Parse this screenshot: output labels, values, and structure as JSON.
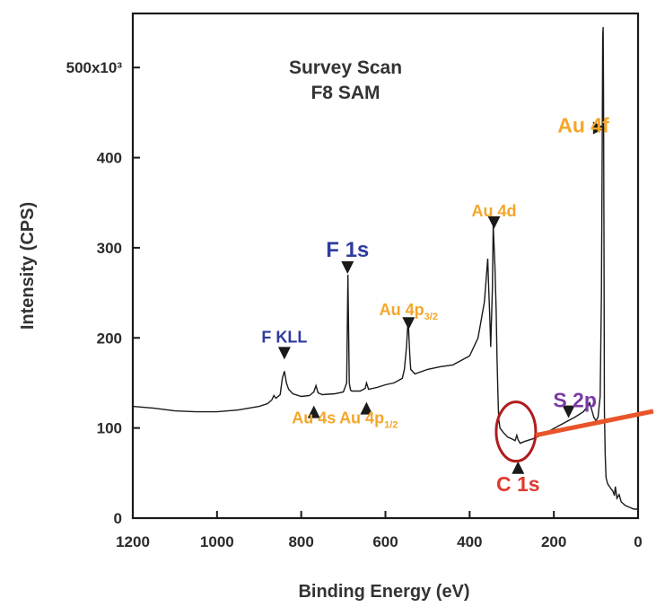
{
  "chart_data": {
    "type": "line",
    "title_lines": [
      "Survey Scan",
      "F8 SAM"
    ],
    "xlabel": "Binding Energy (eV)",
    "ylabel": "Intensity (CPS)",
    "xlim": [
      1200,
      0
    ],
    "ylim": [
      0,
      560000
    ],
    "x_ticks": [
      1200,
      1000,
      800,
      600,
      400,
      200,
      0
    ],
    "x_tick_labels": [
      "1200",
      "1000",
      "800",
      "600",
      "400",
      "200",
      "0"
    ],
    "y_ticks": [
      0,
      100000,
      200000,
      300000,
      400000,
      500000
    ],
    "y_tick_labels": [
      "0",
      "100",
      "200",
      "300",
      "400",
      "500x10³"
    ],
    "series": [
      {
        "x": [
          1200,
          1150,
          1100,
          1050,
          1000,
          950,
          900,
          880,
          870,
          865,
          860,
          850,
          845,
          840,
          835,
          830,
          820,
          800,
          780,
          770,
          765,
          760,
          750,
          720,
          700,
          692,
          689,
          686,
          683,
          680,
          660,
          648,
          645,
          640,
          620,
          600,
          580,
          560,
          555,
          550,
          547,
          545,
          542,
          540,
          530,
          500,
          470,
          440,
          400,
          380,
          365,
          357,
          355,
          352,
          350,
          346,
          344,
          340,
          337,
          335,
          333,
          331,
          328,
          320,
          310,
          300,
          292,
          288,
          285,
          280,
          270,
          250,
          230,
          210,
          190,
          170,
          150,
          130,
          120,
          115,
          110,
          105,
          100,
          95,
          90,
          87,
          85,
          84,
          83,
          82,
          81,
          80,
          78,
          76,
          72,
          65,
          60,
          56,
          54,
          50,
          45,
          40,
          30,
          20,
          10,
          0
        ],
        "y": [
          124000,
          122000,
          119000,
          118000,
          118000,
          120000,
          124000,
          127000,
          131000,
          136000,
          133000,
          137000,
          155000,
          163000,
          150000,
          143000,
          138000,
          135000,
          136000,
          140000,
          147000,
          139000,
          137000,
          138000,
          140000,
          150000,
          270000,
          150000,
          142000,
          141000,
          141000,
          144000,
          150000,
          143000,
          145000,
          148000,
          150000,
          155000,
          165000,
          190000,
          215000,
          210000,
          180000,
          165000,
          160000,
          165000,
          168000,
          170000,
          180000,
          200000,
          240000,
          288000,
          260000,
          220000,
          190000,
          255000,
          325000,
          280000,
          230000,
          180000,
          140000,
          110000,
          100000,
          95000,
          90000,
          88000,
          86000,
          92000,
          87000,
          83000,
          85000,
          88000,
          92000,
          97000,
          102000,
          107000,
          112000,
          118000,
          124000,
          128000,
          120000,
          112000,
          108000,
          112000,
          135000,
          250000,
          420000,
          535000,
          545000,
          480000,
          320000,
          120000,
          70000,
          45000,
          38000,
          33000,
          30000,
          25000,
          35000,
          22000,
          26000,
          18000,
          14000,
          12000,
          10000,
          10000
        ]
      }
    ],
    "annotations": [
      {
        "text": "F KLL",
        "sub": "",
        "color": "#2e3b9e",
        "x": 840,
        "y": 195000,
        "size": 18
      },
      {
        "text": "F 1s",
        "sub": "",
        "color": "#2e3b9e",
        "x": 690,
        "y": 290000,
        "size": 24
      },
      {
        "text": "Au 4p",
        "sub": "3/2",
        "color": "#f4a62a",
        "x": 545,
        "y": 225000,
        "size": 18
      },
      {
        "text": "Au 4d",
        "sub": "",
        "color": "#f4a62a",
        "x": 342,
        "y": 335000,
        "size": 18
      },
      {
        "text": "Au 4f",
        "sub": "",
        "color": "#f4a62a",
        "x": 130,
        "y": 428000,
        "size": 23
      },
      {
        "text": "Au 4s",
        "sub": "",
        "color": "#f4a62a",
        "x": 770,
        "y": 105000,
        "size": 18
      },
      {
        "text": "Au 4p",
        "sub": "1/2",
        "color": "#f4a62a",
        "x": 640,
        "y": 105000,
        "size": 18
      },
      {
        "text": "S 2p",
        "sub": "",
        "color": "#7a3aa3",
        "x": 150,
        "y": 123000,
        "size": 23
      },
      {
        "text": "C 1s",
        "sub": "",
        "color": "#e03a32",
        "x": 285,
        "y": 30000,
        "size": 23
      }
    ],
    "markers": [
      {
        "x": 840,
        "y": 183000,
        "dir": "down"
      },
      {
        "x": 690,
        "y": 278000,
        "dir": "down"
      },
      {
        "x": 545,
        "y": 216000,
        "dir": "down"
      },
      {
        "x": 342,
        "y": 328000,
        "dir": "down"
      },
      {
        "x": 92,
        "y": 433000,
        "dir": "right"
      },
      {
        "x": 770,
        "y": 118000,
        "dir": "up"
      },
      {
        "x": 645,
        "y": 122000,
        "dir": "up"
      },
      {
        "x": 165,
        "y": 118000,
        "dir": "down"
      },
      {
        "x": 285,
        "y": 56000,
        "dir": "up"
      }
    ],
    "highlight": {
      "circle_x": 290,
      "circle_y": 96000,
      "color": "#b01c1c",
      "line_color": "#e8552a"
    }
  }
}
